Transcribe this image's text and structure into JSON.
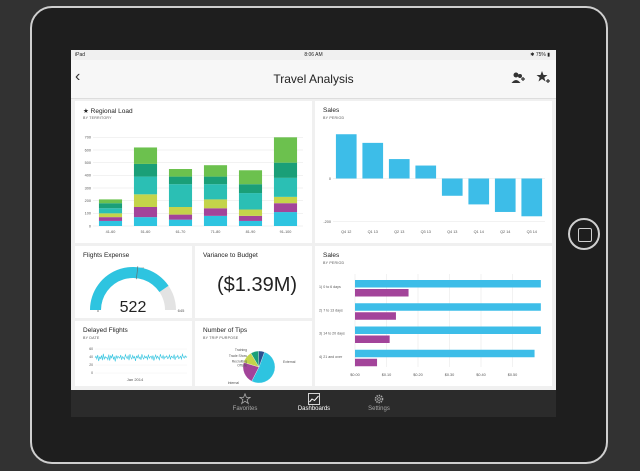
{
  "status": {
    "carrier": "iPad",
    "time": "8:06 AM",
    "battery": "75%"
  },
  "nav": {
    "title": "Travel Analysis",
    "back_icon": "chevron-left-icon",
    "share_icon": "add-user-icon",
    "favorite_icon": "star-plus-icon"
  },
  "regional_load": {
    "title": "★  Regional Load",
    "subtitle": "BY TERRITORY",
    "chart_data": {
      "type": "bar",
      "stacked": true,
      "categories": [
        "41-60",
        "51-60",
        "61-70",
        "71-80",
        "81-90",
        "91-100"
      ],
      "y_ticks": [
        0,
        100,
        200,
        300,
        400,
        500,
        600,
        700
      ],
      "ylim": [
        0,
        750
      ],
      "colors": [
        "#2ec4e0",
        "#a3449a",
        "#c4d44a",
        "#2bbfb4",
        "#1a9f78",
        "#6cc14e"
      ],
      "stacks": [
        [
          40,
          70,
          50,
          80,
          40,
          110
        ],
        [
          30,
          80,
          40,
          60,
          40,
          70
        ],
        [
          30,
          100,
          60,
          70,
          50,
          50
        ],
        [
          40,
          140,
          180,
          120,
          130,
          150
        ],
        [
          40,
          100,
          60,
          60,
          70,
          120
        ],
        [
          30,
          130,
          60,
          90,
          110,
          200
        ]
      ]
    }
  },
  "sales_period": {
    "title": "Sales",
    "subtitle": "BY PERIOD",
    "chart_data": {
      "type": "bar",
      "categories": [
        "Q4 12",
        "Q1 13",
        "Q2 13",
        "Q3 13",
        "Q4 13",
        "Q1 14",
        "Q2 14",
        "Q3 14"
      ],
      "values": [
        205,
        165,
        90,
        60,
        -80,
        -120,
        -155,
        -175
      ],
      "y_ticks": [
        -200,
        0
      ],
      "ylim": [
        -220,
        220
      ],
      "color": "#3dbde8"
    }
  },
  "flights_expense": {
    "title": "Flights Expense",
    "value": "522",
    "min_label": "0",
    "target_label": "345",
    "max_label": "645",
    "chart_data": {
      "type": "gauge",
      "min": 0,
      "max": 645,
      "value": 522,
      "target": 345,
      "color": "#2ec4e0"
    }
  },
  "variance": {
    "title": "Variance to Budget",
    "value": "($1.39M)"
  },
  "sales_bars": {
    "title": "Sales",
    "subtitle": "BY PERIOD",
    "chart_data": {
      "type": "bar",
      "orientation": "horizontal",
      "categories": [
        "1) 0 to 6 days",
        "2) 7 to 13 days",
        "3) 14 to 20 days",
        "4) 21 and over"
      ],
      "series": [
        {
          "values": [
            0.59,
            0.59,
            0.59,
            0.57
          ],
          "color": "#3dbde8"
        },
        {
          "values": [
            0.17,
            0.13,
            0.11,
            0.07
          ],
          "color": "#a3449a"
        }
      ],
      "x_ticks": [
        "$0.00",
        "$0.10",
        "$0.20",
        "$0.30",
        "$0.40",
        "$0.50"
      ],
      "xlim": [
        0,
        0.6
      ]
    }
  },
  "delayed_flights": {
    "title": "Delayed Flights",
    "subtitle": "BY DATE",
    "x_label": "Jan 2014",
    "chart_data": {
      "type": "line",
      "y_ticks": [
        0,
        20,
        40,
        60
      ],
      "ylim": [
        0,
        70
      ],
      "values": [
        38,
        42,
        35,
        45,
        30,
        40,
        36,
        44,
        32,
        48,
        34,
        41,
        37,
        39,
        33,
        46,
        31,
        43,
        38,
        47,
        35,
        40,
        29,
        44,
        36,
        42,
        39,
        37,
        45,
        33,
        41,
        38,
        34,
        46,
        40,
        36,
        43,
        32,
        47,
        39,
        35,
        44,
        37,
        41,
        30,
        42,
        38,
        45,
        36,
        40,
        33,
        47,
        39,
        35,
        43,
        38,
        41,
        34,
        46,
        37,
        40,
        42,
        35,
        44,
        31,
        39,
        45,
        36,
        42,
        38,
        33,
        47,
        40,
        37,
        44,
        35,
        41,
        39,
        43,
        36,
        38,
        45,
        34,
        42,
        40,
        37,
        46,
        33,
        41,
        39,
        44,
        36,
        38,
        42,
        35,
        47,
        40,
        37,
        43,
        39,
        41
      ],
      "color": "#2ec4e0"
    }
  },
  "tips": {
    "title": "Number of Tips",
    "subtitle": "BY TRIP PURPOSE",
    "chart_data": {
      "type": "pie",
      "labels": [
        "External",
        "Internal",
        "Recruiting Offsite",
        "Trade Show",
        "Training"
      ],
      "values": [
        52,
        22,
        12,
        8,
        6
      ],
      "colors": [
        "#2ec4e0",
        "#a3449a",
        "#c4d44a",
        "#1a9f78",
        "#2b4f8f"
      ]
    }
  },
  "tabbar": {
    "items": [
      {
        "label": "Favorites",
        "icon": "star-outline-icon"
      },
      {
        "label": "Dashboards",
        "icon": "chart-icon"
      },
      {
        "label": "Settings",
        "icon": "gear-icon"
      }
    ]
  }
}
